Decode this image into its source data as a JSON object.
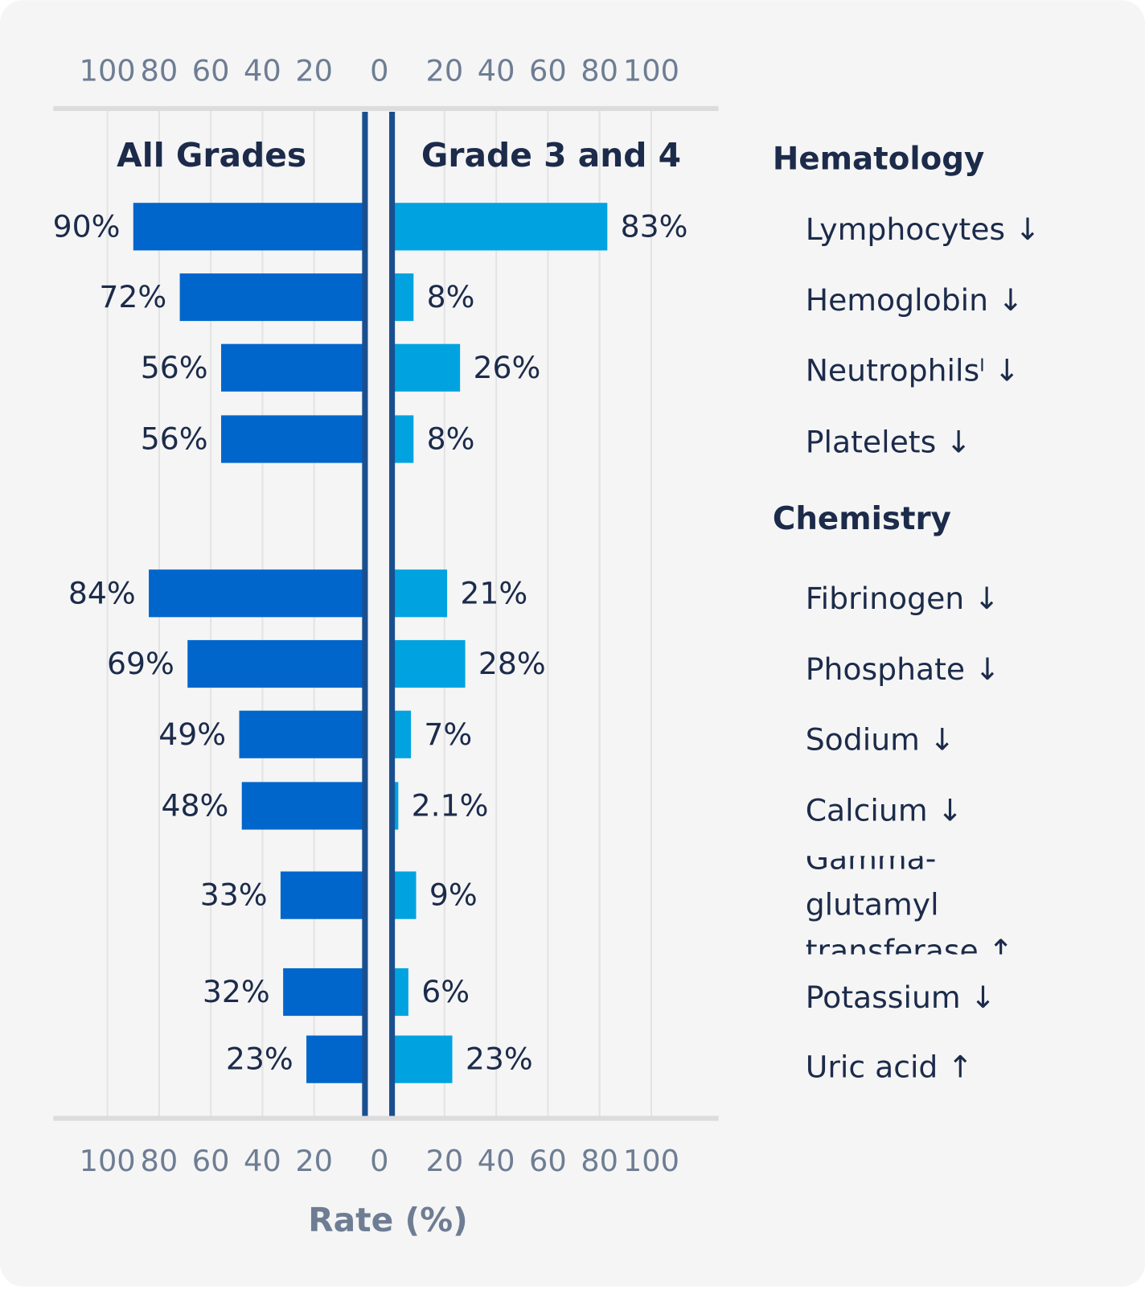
{
  "chart_data": {
    "type": "bar",
    "x_label": "Rate (%)",
    "categories": [
      "Hematology",
      "Lymphocytes ↓",
      "Hemoglobin ↓",
      "Neutrophilsˡ ↓",
      "Platelets ↓",
      "Chemistry",
      "Fibrinogen ↓",
      "Phosphate ↓",
      "Sodium ↓",
      "Calcium ↓",
      "Gamma-glutamyl transferase ↑",
      "Potassium  ↓",
      "Uric acid ↑"
    ],
    "series": [
      {
        "name": "All Grades",
        "color": "#0066cc",
        "side": "left",
        "values": [
          null,
          90,
          72,
          56,
          56,
          null,
          84,
          69,
          49,
          48,
          33,
          32,
          23
        ],
        "value_labels": [
          null,
          "90%",
          "72%",
          "56%",
          "56%",
          null,
          "84%",
          "69%",
          "49%",
          "48%",
          "33%",
          "32%",
          "23%"
        ]
      },
      {
        "name": "Grade 3 and 4",
        "color": "#00a3e0",
        "side": "right",
        "values": [
          null,
          83,
          8,
          26,
          8,
          null,
          21,
          28,
          7,
          2.1,
          9,
          6,
          23
        ],
        "value_labels": [
          null,
          "83%",
          "8%",
          "26%",
          "8%",
          null,
          "21%",
          "28%",
          "7%",
          "2.1%",
          "9%",
          "6%",
          "23%"
        ]
      }
    ],
    "xlim": [
      0,
      100
    ],
    "xticks": [
      0,
      20,
      40,
      60,
      80,
      100
    ],
    "grid": true
  }
}
